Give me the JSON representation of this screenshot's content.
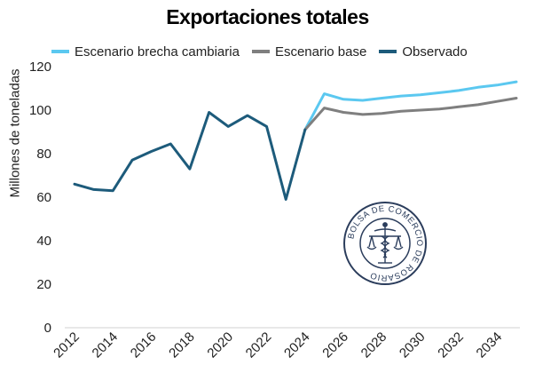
{
  "chart_data": {
    "type": "line",
    "title": "Exportaciones totales",
    "xlabel": "",
    "ylabel": "Millones de toneladas",
    "xlim": [
      2012,
      2035
    ],
    "ylim": [
      0,
      120
    ],
    "x_ticks": [
      "2012",
      "2014",
      "2016",
      "2018",
      "2020",
      "2022",
      "2024",
      "2026",
      "2028",
      "2030",
      "2032",
      "2034"
    ],
    "y_ticks": [
      "0",
      "20",
      "40",
      "60",
      "80",
      "100",
      "120"
    ],
    "grid": false,
    "legend_position": "top",
    "series": [
      {
        "name": "Escenario brecha cambiaria",
        "color": "#5bc8f0",
        "x": [
          2024,
          2025,
          2026,
          2027,
          2028,
          2029,
          2030,
          2031,
          2032,
          2033,
          2034,
          2035
        ],
        "y": [
          91,
          107.5,
          105,
          104.5,
          105.5,
          106.5,
          107,
          108,
          109,
          110.5,
          111.5,
          113
        ]
      },
      {
        "name": "Escenario base",
        "color": "#7f7f7f",
        "x": [
          2024,
          2025,
          2026,
          2027,
          2028,
          2029,
          2030,
          2031,
          2032,
          2033,
          2034,
          2035
        ],
        "y": [
          91,
          101,
          99,
          98,
          98.5,
          99.5,
          100,
          100.5,
          101.5,
          102.5,
          104,
          105.5
        ]
      },
      {
        "name": "Observado",
        "color": "#1d5b7b",
        "x": [
          2012,
          2013,
          2014,
          2015,
          2016,
          2017,
          2018,
          2019,
          2020,
          2021,
          2022,
          2023,
          2024
        ],
        "y": [
          66,
          63.5,
          63,
          77,
          81,
          84.5,
          73,
          99,
          92.5,
          97.5,
          92.5,
          59,
          91
        ]
      }
    ]
  },
  "watermark": {
    "text": "BOLSA DE COMERCIO DE ROSARIO",
    "icon": "caduceus-scales-seal-icon"
  }
}
